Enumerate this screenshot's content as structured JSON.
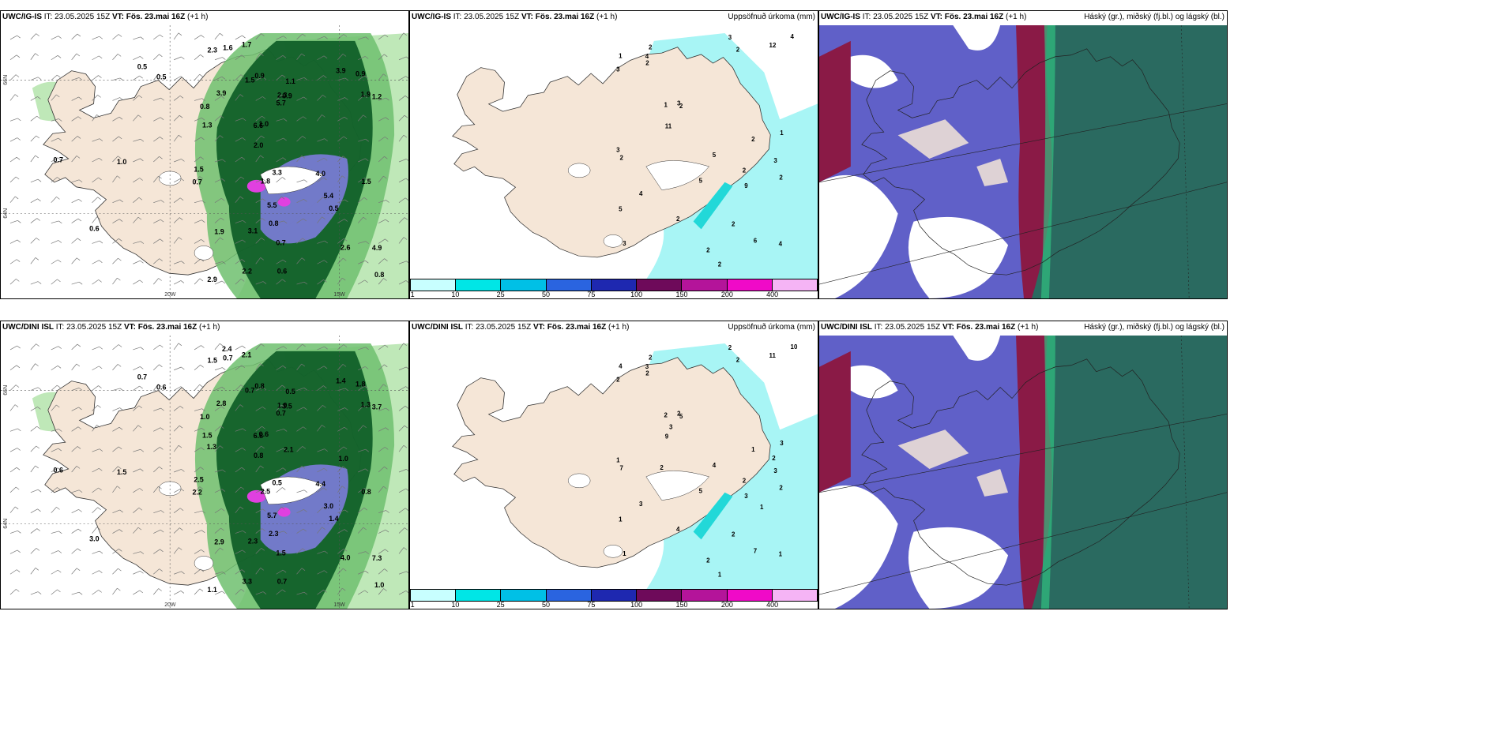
{
  "rows": [
    {
      "model": "UWC/IG-IS",
      "it": "IT: 23.05.2025 15Z",
      "vt_prefix": "VT:",
      "vt": "Fös. 23.mai 16Z",
      "lead": "(+1 h)"
    },
    {
      "model": "UWC/DINI ISL",
      "it": "IT: 23.05.2025 15Z",
      "vt_prefix": "VT:",
      "vt": "Fös. 23.mai 16Z",
      "lead": "(+1 h)"
    }
  ],
  "precip_title": "Uppsöfnuð úrkoma (mm)",
  "cloud_title": "Háský (gr.), miðský (fj.bl.) og lágský (bl.)",
  "grid_labels": {
    "lat66": "66N",
    "lat64": "64N",
    "lon20": "20W",
    "lon15": "15W"
  },
  "colorbar": {
    "ticks": [
      "1",
      "10",
      "25",
      "50",
      "75",
      "100",
      "150",
      "200",
      "400"
    ],
    "colors": [
      "#c8ffff",
      "#00e6e6",
      "#00c0e6",
      "#2a64e0",
      "#1e28b0",
      "#6e0a5a",
      "#b4149a",
      "#f00ac8",
      "#f5b4f5"
    ]
  },
  "colors": {
    "land": "#f5e6d7",
    "sea": "#ffffff",
    "green_light": "#bfe8b8",
    "green_mid": "#6fbf6f",
    "green_dark": "#0b5a25",
    "purple": "#8a7ff0",
    "magenta": "#e040e0",
    "cyan_precip": "#a8f5f5",
    "cloud_purple": "#6060c8",
    "cloud_red": "#8a1a46",
    "cloud_teal": "#2a6a60",
    "cloud_green": "#30c080"
  },
  "labels_a_top": [
    "0.5",
    "1.0",
    "0.7",
    "0.6",
    "0.7",
    "0.5",
    "1.1",
    "0.8",
    "0.6",
    "3.3",
    "1.5",
    "2.3",
    "0.9",
    "1.0",
    "1.2",
    "0.9",
    "0.8",
    "3.9",
    "2.3",
    "5.4",
    "2.0",
    "0.7",
    "5.7",
    "3.9",
    "2.6",
    "4.9",
    "4.0",
    "6.6",
    "5.5",
    "2.2",
    "1.8",
    "2.9",
    "1.5",
    "1.9",
    "1.7",
    "0.5",
    "1.9",
    "1.6",
    "1.5",
    "0.9",
    "0.8",
    "1.3",
    "3.1"
  ],
  "labels_a_bot": [
    "0.7",
    "1.5",
    "2.2",
    "3.0",
    "0.6",
    "0.6",
    "0.5",
    "1.0",
    "0.7",
    "0.5",
    "0.7",
    "1.0",
    "0.8",
    "0.6",
    "3.7",
    "3.5",
    "2.3",
    "2.8",
    "1.5",
    "3.0",
    "0.8",
    "1.5",
    "0.7",
    "1.4",
    "4.0",
    "7.3",
    "4.4",
    "6.8",
    "5.7",
    "3.3",
    "2.5",
    "1.1",
    "0.8",
    "2.9",
    "2.1",
    "1.4",
    "1.3",
    "0.7",
    "2.5",
    "1.8",
    "1.0",
    "1.5",
    "2.3",
    "2.4",
    "1.3",
    "2.1",
    "1.0"
  ],
  "labels_b_top": [
    "2",
    "3",
    "3",
    "2",
    "2",
    "6",
    "5",
    "2",
    "1",
    "2",
    "3",
    "3",
    "1",
    "4",
    "2",
    "1",
    "5",
    "5",
    "3",
    "4",
    "4",
    "12",
    "11",
    "2",
    "3",
    "4",
    "9",
    "2",
    "2",
    "2",
    "2",
    "2"
  ],
  "labels_b_bot": [
    "2",
    "3",
    "1",
    "2",
    "5",
    "7",
    "1",
    "2",
    "2",
    "1",
    "2",
    "1",
    "4",
    "1",
    "4",
    "3",
    "5",
    "4",
    "2",
    "3",
    "10",
    "11",
    "9",
    "2",
    "2",
    "3",
    "3",
    "7",
    "2",
    "1",
    "2",
    "2",
    "3",
    "2",
    "2",
    "1"
  ]
}
